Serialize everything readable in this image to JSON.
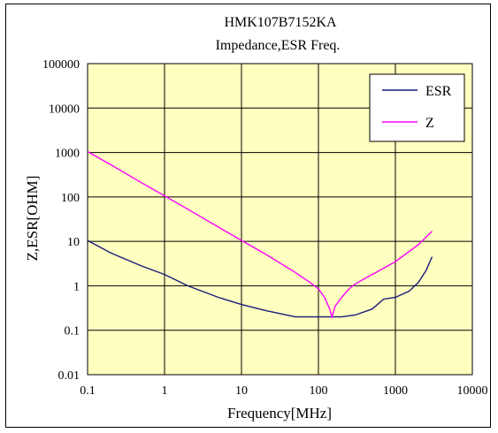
{
  "chart_data": {
    "type": "line",
    "title": "HMK107B7152KA",
    "subtitle": "Impedance,ESR Freq.",
    "xlabel": "Frequency[MHz]",
    "ylabel": "Z,ESR[OHM]",
    "x_scale": "log",
    "y_scale": "log",
    "xlim": [
      0.1,
      10000
    ],
    "ylim": [
      0.01,
      100000
    ],
    "x_ticks": [
      "0.1",
      "1",
      "10",
      "100",
      "1000",
      "10000"
    ],
    "y_ticks": [
      "0.01",
      "0.1",
      "1",
      "10",
      "100",
      "1000",
      "10000",
      "100000"
    ],
    "grid": true,
    "legend_position": "top-right",
    "plot_background": "#ffffc0",
    "series": [
      {
        "name": "ESR",
        "color": "#1a1a7a",
        "x": [
          0.1,
          0.2,
          0.5,
          1,
          2,
          5,
          10,
          20,
          50,
          100,
          150,
          200,
          300,
          500,
          700,
          1000,
          1500,
          2000,
          2500,
          3000
        ],
        "y": [
          10.5,
          5.5,
          2.8,
          1.8,
          1.0,
          0.55,
          0.38,
          0.28,
          0.2,
          0.2,
          0.2,
          0.2,
          0.22,
          0.3,
          0.5,
          0.55,
          0.75,
          1.2,
          2.2,
          4.5
        ]
      },
      {
        "name": "Z",
        "color": "#ff00ff",
        "x": [
          0.1,
          0.2,
          0.5,
          1,
          2,
          5,
          10,
          20,
          50,
          80,
          100,
          120,
          140,
          150,
          165,
          200,
          250,
          300,
          500,
          1000,
          2000,
          3000
        ],
        "y": [
          1050,
          530,
          210,
          106,
          53,
          21,
          10.5,
          5.3,
          2.0,
          1.15,
          0.85,
          0.55,
          0.3,
          0.2,
          0.35,
          0.55,
          0.85,
          1.1,
          1.8,
          3.5,
          8.5,
          17
        ]
      }
    ]
  }
}
